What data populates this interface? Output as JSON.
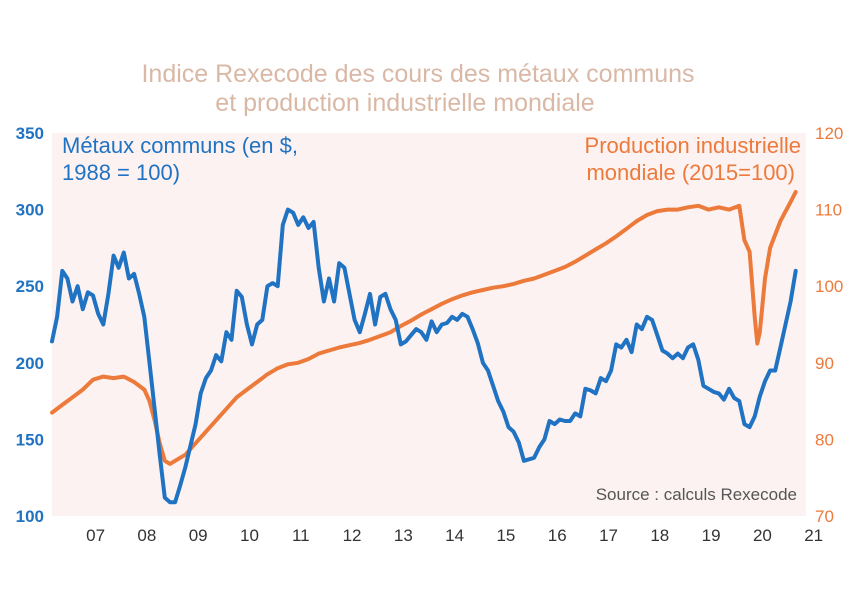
{
  "colors": {
    "metals": "#1f73c2",
    "production": "#ec7a3b",
    "plot_bg": "#fdf2f2",
    "title": "#d9b8a6"
  },
  "chart_data": {
    "type": "line",
    "title_line1": "Indice Rexecode des cours des métaux communs",
    "title_line2": "et production industrielle mondiale",
    "source": "Source : calculs Rexecode",
    "x_ticks": [
      "07",
      "08",
      "09",
      "10",
      "11",
      "12",
      "13",
      "14",
      "15",
      "16",
      "17",
      "18",
      "19",
      "20",
      "21"
    ],
    "xlim": [
      2006.6,
      2021.3
    ],
    "grid": false,
    "left_axis": {
      "ylim": [
        100,
        350
      ],
      "ticks": [
        "350",
        "300",
        "250",
        "200",
        "150",
        "100"
      ],
      "color": "#1f73c2"
    },
    "right_axis": {
      "ylim": [
        70,
        120
      ],
      "ticks": [
        "120",
        "110",
        "100",
        "90",
        "80",
        "70"
      ],
      "color": "#ec7a3b"
    },
    "series": [
      {
        "name_line1": "Métaux communs (en $,",
        "name_line2": "1988 = 100)",
        "axis": "left",
        "color": "#1f73c2",
        "points": [
          [
            2006.6,
            214
          ],
          [
            2006.7,
            230
          ],
          [
            2006.8,
            260
          ],
          [
            2006.9,
            255
          ],
          [
            2007.0,
            240
          ],
          [
            2007.1,
            250
          ],
          [
            2007.2,
            235
          ],
          [
            2007.3,
            246
          ],
          [
            2007.4,
            244
          ],
          [
            2007.5,
            232
          ],
          [
            2007.6,
            225
          ],
          [
            2007.7,
            245
          ],
          [
            2007.8,
            270
          ],
          [
            2007.9,
            262
          ],
          [
            2008.0,
            272
          ],
          [
            2008.1,
            255
          ],
          [
            2008.2,
            258
          ],
          [
            2008.3,
            245
          ],
          [
            2008.4,
            230
          ],
          [
            2008.5,
            200
          ],
          [
            2008.6,
            170
          ],
          [
            2008.7,
            140
          ],
          [
            2008.8,
            112
          ],
          [
            2008.9,
            109
          ],
          [
            2009.0,
            109
          ],
          [
            2009.1,
            120
          ],
          [
            2009.2,
            132
          ],
          [
            2009.3,
            146
          ],
          [
            2009.4,
            160
          ],
          [
            2009.5,
            180
          ],
          [
            2009.6,
            190
          ],
          [
            2009.7,
            195
          ],
          [
            2009.8,
            205
          ],
          [
            2009.9,
            201
          ],
          [
            2010.0,
            220
          ],
          [
            2010.1,
            215
          ],
          [
            2010.2,
            247
          ],
          [
            2010.3,
            243
          ],
          [
            2010.4,
            225
          ],
          [
            2010.5,
            212
          ],
          [
            2010.6,
            225
          ],
          [
            2010.7,
            228
          ],
          [
            2010.8,
            250
          ],
          [
            2010.9,
            252
          ],
          [
            2011.0,
            250
          ],
          [
            2011.1,
            290
          ],
          [
            2011.2,
            300
          ],
          [
            2011.3,
            298
          ],
          [
            2011.4,
            290
          ],
          [
            2011.5,
            295
          ],
          [
            2011.6,
            288
          ],
          [
            2011.7,
            292
          ],
          [
            2011.8,
            262
          ],
          [
            2011.9,
            240
          ],
          [
            2012.0,
            255
          ],
          [
            2012.1,
            240
          ],
          [
            2012.2,
            265
          ],
          [
            2012.3,
            262
          ],
          [
            2012.4,
            245
          ],
          [
            2012.5,
            228
          ],
          [
            2012.6,
            220
          ],
          [
            2012.7,
            232
          ],
          [
            2012.8,
            245
          ],
          [
            2012.9,
            225
          ],
          [
            2013.0,
            243
          ],
          [
            2013.1,
            245
          ],
          [
            2013.2,
            235
          ],
          [
            2013.3,
            228
          ],
          [
            2013.4,
            212
          ],
          [
            2013.5,
            214
          ],
          [
            2013.6,
            218
          ],
          [
            2013.7,
            222
          ],
          [
            2013.8,
            220
          ],
          [
            2013.9,
            215
          ],
          [
            2014.0,
            227
          ],
          [
            2014.1,
            220
          ],
          [
            2014.2,
            225
          ],
          [
            2014.3,
            226
          ],
          [
            2014.4,
            230
          ],
          [
            2014.5,
            228
          ],
          [
            2014.6,
            232
          ],
          [
            2014.7,
            230
          ],
          [
            2014.8,
            222
          ],
          [
            2014.9,
            213
          ],
          [
            2015.0,
            200
          ],
          [
            2015.1,
            195
          ],
          [
            2015.2,
            185
          ],
          [
            2015.3,
            175
          ],
          [
            2015.4,
            168
          ],
          [
            2015.5,
            158
          ],
          [
            2015.6,
            155
          ],
          [
            2015.7,
            148
          ],
          [
            2015.8,
            136
          ],
          [
            2015.9,
            137
          ],
          [
            2016.0,
            138
          ],
          [
            2016.1,
            145
          ],
          [
            2016.2,
            150
          ],
          [
            2016.3,
            162
          ],
          [
            2016.4,
            160
          ],
          [
            2016.5,
            163
          ],
          [
            2016.6,
            162
          ],
          [
            2016.7,
            162
          ],
          [
            2016.8,
            167
          ],
          [
            2016.9,
            165
          ],
          [
            2017.0,
            183
          ],
          [
            2017.1,
            182
          ],
          [
            2017.2,
            180
          ],
          [
            2017.3,
            190
          ],
          [
            2017.4,
            188
          ],
          [
            2017.5,
            195
          ],
          [
            2017.6,
            212
          ],
          [
            2017.7,
            210
          ],
          [
            2017.8,
            215
          ],
          [
            2017.9,
            207
          ],
          [
            2018.0,
            225
          ],
          [
            2018.1,
            222
          ],
          [
            2018.2,
            230
          ],
          [
            2018.3,
            228
          ],
          [
            2018.4,
            218
          ],
          [
            2018.5,
            208
          ],
          [
            2018.6,
            206
          ],
          [
            2018.7,
            203
          ],
          [
            2018.8,
            206
          ],
          [
            2018.9,
            203
          ],
          [
            2019.0,
            210
          ],
          [
            2019.1,
            212
          ],
          [
            2019.2,
            202
          ],
          [
            2019.3,
            185
          ],
          [
            2019.4,
            183
          ],
          [
            2019.5,
            181
          ],
          [
            2019.6,
            180
          ],
          [
            2019.7,
            176
          ],
          [
            2019.8,
            183
          ],
          [
            2019.9,
            177
          ],
          [
            2020.0,
            175
          ],
          [
            2020.1,
            160
          ],
          [
            2020.2,
            158
          ],
          [
            2020.3,
            165
          ],
          [
            2020.4,
            178
          ],
          [
            2020.5,
            188
          ],
          [
            2020.6,
            195
          ],
          [
            2020.7,
            195
          ],
          [
            2020.8,
            210
          ],
          [
            2020.9,
            225
          ],
          [
            2021.0,
            240
          ],
          [
            2021.1,
            260
          ]
        ]
      },
      {
        "name_line1": "Production industrielle",
        "name_line2": "mondiale (2015=100)",
        "axis": "right",
        "color": "#ec7a3b",
        "points": [
          [
            2006.6,
            83.5
          ],
          [
            2006.8,
            84.5
          ],
          [
            2007.0,
            85.5
          ],
          [
            2007.2,
            86.5
          ],
          [
            2007.4,
            87.8
          ],
          [
            2007.6,
            88.2
          ],
          [
            2007.8,
            88.0
          ],
          [
            2008.0,
            88.2
          ],
          [
            2008.2,
            87.5
          ],
          [
            2008.4,
            86.5
          ],
          [
            2008.5,
            85.0
          ],
          [
            2008.6,
            82.5
          ],
          [
            2008.7,
            79.5
          ],
          [
            2008.8,
            77.2
          ],
          [
            2008.9,
            76.8
          ],
          [
            2009.0,
            77.2
          ],
          [
            2009.2,
            78.0
          ],
          [
            2009.4,
            79.5
          ],
          [
            2009.6,
            81.0
          ],
          [
            2009.8,
            82.5
          ],
          [
            2010.0,
            84.0
          ],
          [
            2010.2,
            85.5
          ],
          [
            2010.4,
            86.5
          ],
          [
            2010.6,
            87.5
          ],
          [
            2010.8,
            88.5
          ],
          [
            2011.0,
            89.3
          ],
          [
            2011.2,
            89.8
          ],
          [
            2011.4,
            90.0
          ],
          [
            2011.6,
            90.5
          ],
          [
            2011.8,
            91.2
          ],
          [
            2012.0,
            91.6
          ],
          [
            2012.2,
            92.0
          ],
          [
            2012.4,
            92.3
          ],
          [
            2012.6,
            92.6
          ],
          [
            2012.8,
            93.0
          ],
          [
            2013.0,
            93.5
          ],
          [
            2013.2,
            94.0
          ],
          [
            2013.4,
            94.8
          ],
          [
            2013.6,
            95.5
          ],
          [
            2013.8,
            96.3
          ],
          [
            2014.0,
            97.0
          ],
          [
            2014.2,
            97.7
          ],
          [
            2014.4,
            98.3
          ],
          [
            2014.6,
            98.8
          ],
          [
            2014.8,
            99.2
          ],
          [
            2015.0,
            99.5
          ],
          [
            2015.2,
            99.8
          ],
          [
            2015.4,
            100.0
          ],
          [
            2015.6,
            100.3
          ],
          [
            2015.8,
            100.7
          ],
          [
            2016.0,
            101.0
          ],
          [
            2016.2,
            101.5
          ],
          [
            2016.4,
            102.0
          ],
          [
            2016.6,
            102.5
          ],
          [
            2016.8,
            103.2
          ],
          [
            2017.0,
            104.0
          ],
          [
            2017.2,
            104.8
          ],
          [
            2017.4,
            105.6
          ],
          [
            2017.6,
            106.5
          ],
          [
            2017.8,
            107.5
          ],
          [
            2018.0,
            108.5
          ],
          [
            2018.2,
            109.3
          ],
          [
            2018.4,
            109.8
          ],
          [
            2018.6,
            110.0
          ],
          [
            2018.8,
            110.0
          ],
          [
            2019.0,
            110.3
          ],
          [
            2019.2,
            110.5
          ],
          [
            2019.4,
            110.0
          ],
          [
            2019.6,
            110.3
          ],
          [
            2019.8,
            110.0
          ],
          [
            2020.0,
            110.5
          ],
          [
            2020.1,
            106.0
          ],
          [
            2020.2,
            104.5
          ],
          [
            2020.3,
            96.0
          ],
          [
            2020.35,
            92.5
          ],
          [
            2020.4,
            94.0
          ],
          [
            2020.5,
            101.0
          ],
          [
            2020.6,
            105.0
          ],
          [
            2020.8,
            108.5
          ],
          [
            2021.0,
            111.0
          ],
          [
            2021.1,
            112.3
          ]
        ]
      }
    ]
  }
}
